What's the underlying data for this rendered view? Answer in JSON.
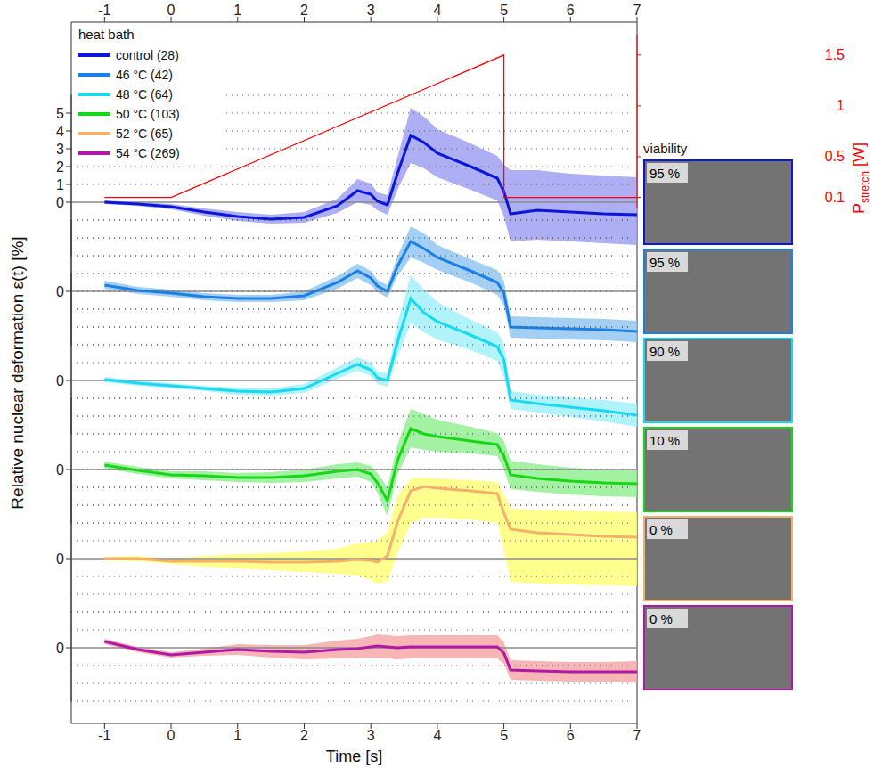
{
  "chart_data": {
    "type": "line",
    "xlabel": "Time [s]",
    "ylabel": "Relative nuclear deformation  ε(t) [%]",
    "xlim": [
      -1.5,
      7
    ],
    "xticks": [
      -1,
      0,
      1,
      2,
      3,
      4,
      5,
      6,
      7
    ],
    "grid": true,
    "legend": "top-left",
    "legend_title": "heat bath",
    "x": [
      -1,
      -0.5,
      0,
      0.5,
      1,
      1.5,
      2,
      2.5,
      2.8,
      3,
      3.1,
      3.25,
      3.4,
      3.6,
      3.8,
      4,
      4.5,
      4.9,
      5,
      5.1,
      5.5,
      6,
      6.5,
      7
    ],
    "series": [
      {
        "name": "control (28)",
        "color": "#0b16d8",
        "band_color": "#9a9af2",
        "ylim": [
          -3,
          6
        ],
        "yticks": [
          0,
          1,
          2,
          3,
          4,
          5
        ],
        "values": [
          0,
          -0.1,
          -0.25,
          -0.55,
          -0.8,
          -0.95,
          -0.85,
          -0.2,
          0.65,
          0.45,
          0.05,
          -0.15,
          1.6,
          3.75,
          3.35,
          2.75,
          2.0,
          1.35,
          0.6,
          -0.65,
          -0.45,
          -0.55,
          -0.65,
          -0.7
        ],
        "lower": [
          -0.1,
          -0.2,
          -0.4,
          -0.75,
          -1.05,
          -1.2,
          -1.15,
          -0.6,
          0.0,
          -0.15,
          -0.45,
          -0.7,
          0.7,
          2.2,
          1.9,
          1.4,
          0.7,
          0.1,
          -0.8,
          -2.2,
          -2.1,
          -2.2,
          -2.3,
          -2.4
        ],
        "upper": [
          0.1,
          0.0,
          -0.1,
          -0.35,
          -0.55,
          -0.7,
          -0.55,
          0.2,
          1.3,
          1.05,
          0.55,
          0.4,
          2.5,
          5.3,
          4.8,
          4.1,
          3.3,
          2.6,
          2.1,
          1.8,
          1.8,
          1.6,
          1.5,
          1.4
        ]
      },
      {
        "name": "46 °C (42)",
        "color": "#1a80e6",
        "band_color": "#8cc3f2",
        "ylim": [
          -3,
          4
        ],
        "yticks": [
          0
        ],
        "values": [
          0.35,
          0.05,
          -0.1,
          -0.3,
          -0.4,
          -0.4,
          -0.25,
          0.5,
          1.15,
          0.75,
          0.3,
          0.0,
          1.4,
          2.8,
          2.4,
          1.9,
          1.15,
          0.5,
          -0.1,
          -2.0,
          -2.05,
          -2.1,
          -2.15,
          -2.25
        ],
        "lower": [
          0.15,
          -0.15,
          -0.3,
          -0.5,
          -0.6,
          -0.6,
          -0.5,
          0.15,
          0.75,
          0.35,
          -0.05,
          -0.35,
          0.85,
          1.9,
          1.6,
          1.2,
          0.5,
          -0.2,
          -0.8,
          -2.6,
          -2.65,
          -2.7,
          -2.75,
          -2.85
        ],
        "upper": [
          0.6,
          0.25,
          0.1,
          -0.1,
          -0.2,
          -0.2,
          0.0,
          0.85,
          1.55,
          1.15,
          0.65,
          0.35,
          1.95,
          3.65,
          3.25,
          2.6,
          1.8,
          1.2,
          0.6,
          -1.4,
          -1.45,
          -1.5,
          -1.55,
          -1.65
        ]
      },
      {
        "name": "48 °C (64)",
        "color": "#18d8f2",
        "band_color": "#9cf0fa",
        "ylim": [
          -3,
          6
        ],
        "yticks": [
          0
        ],
        "values": [
          0.05,
          -0.15,
          -0.3,
          -0.45,
          -0.6,
          -0.65,
          -0.45,
          0.4,
          0.9,
          0.6,
          0.15,
          0.0,
          2.15,
          4.6,
          3.8,
          3.3,
          2.55,
          1.9,
          1.15,
          -1.1,
          -1.3,
          -1.5,
          -1.7,
          -1.95
        ],
        "lower": [
          -0.1,
          -0.3,
          -0.45,
          -0.6,
          -0.8,
          -0.85,
          -0.7,
          0.1,
          0.55,
          0.25,
          -0.2,
          -0.35,
          1.3,
          3.2,
          2.7,
          2.3,
          1.7,
          1.1,
          0.2,
          -1.6,
          -1.8,
          -2.05,
          -2.3,
          -2.6
        ],
        "upper": [
          0.2,
          0.0,
          -0.15,
          -0.3,
          -0.4,
          -0.45,
          -0.2,
          0.75,
          1.3,
          1.0,
          0.5,
          0.4,
          3.2,
          5.9,
          5.1,
          4.4,
          3.4,
          2.7,
          2.1,
          -0.6,
          -0.8,
          -0.95,
          -1.1,
          -1.3
        ]
      },
      {
        "name": "50 °C (103)",
        "color": "#16d816",
        "band_color": "#8cee8c",
        "ylim": [
          -3,
          4
        ],
        "yticks": [
          0
        ],
        "values": [
          0.25,
          -0.05,
          -0.3,
          -0.35,
          -0.45,
          -0.45,
          -0.35,
          -0.1,
          0.0,
          -0.25,
          -0.75,
          -1.75,
          0.5,
          2.3,
          2.0,
          1.85,
          1.6,
          1.4,
          0.75,
          -0.3,
          -0.5,
          -0.65,
          -0.75,
          -0.8
        ],
        "lower": [
          0.05,
          -0.25,
          -0.5,
          -0.6,
          -0.7,
          -0.75,
          -0.7,
          -0.5,
          -0.4,
          -0.7,
          -1.3,
          -2.6,
          -0.3,
          1.25,
          1.1,
          1.0,
          0.9,
          0.75,
          0.0,
          -1.1,
          -1.25,
          -1.4,
          -1.5,
          -1.55
        ],
        "upper": [
          0.45,
          0.15,
          -0.1,
          -0.1,
          -0.2,
          -0.15,
          0.0,
          0.3,
          0.4,
          0.2,
          -0.2,
          -1.0,
          1.4,
          3.4,
          3.1,
          2.8,
          2.4,
          2.05,
          1.6,
          0.5,
          0.3,
          0.1,
          0.0,
          -0.05
        ]
      },
      {
        "name": "52 °C (65)",
        "color": "#f5b06e",
        "band_color": "#ffff70",
        "ylim": [
          -3,
          5
        ],
        "yticks": [
          0
        ],
        "values": [
          0.0,
          0.0,
          -0.15,
          -0.15,
          -0.15,
          -0.2,
          -0.2,
          -0.15,
          -0.05,
          -0.1,
          -0.2,
          0.15,
          2.05,
          3.8,
          4.05,
          3.95,
          3.8,
          3.65,
          2.55,
          1.65,
          1.45,
          1.35,
          1.25,
          1.2
        ],
        "lower": [
          -0.1,
          -0.15,
          -0.3,
          -0.45,
          -0.55,
          -0.65,
          -0.75,
          -0.85,
          -0.95,
          -1.2,
          -1.4,
          -1.3,
          0.3,
          2.0,
          2.3,
          2.3,
          2.2,
          2.0,
          0.5,
          -1.3,
          -1.4,
          -1.45,
          -1.5,
          -1.55
        ],
        "upper": [
          0.1,
          0.15,
          0.0,
          0.15,
          0.25,
          0.3,
          0.4,
          0.55,
          0.85,
          0.95,
          1.0,
          1.5,
          3.5,
          4.5,
          4.55,
          4.5,
          4.4,
          4.3,
          3.6,
          2.8,
          2.75,
          2.7,
          2.65,
          2.6
        ]
      },
      {
        "name": "54 °C (269)",
        "color": "#b018a8",
        "band_color": "#f5a2a2",
        "ylim": [
          -3,
          2
        ],
        "yticks": [
          0
        ],
        "values": [
          0.35,
          -0.1,
          -0.4,
          -0.25,
          -0.1,
          -0.2,
          -0.25,
          -0.1,
          -0.05,
          0.05,
          0.1,
          0.05,
          0.0,
          0.05,
          0.05,
          0.05,
          0.05,
          0.05,
          -0.3,
          -1.25,
          -1.3,
          -1.35,
          -1.35,
          -1.35
        ],
        "lower": [
          0.2,
          -0.25,
          -0.55,
          -0.45,
          -0.4,
          -0.55,
          -0.65,
          -0.6,
          -0.6,
          -0.55,
          -0.55,
          -0.6,
          -0.65,
          -0.6,
          -0.6,
          -0.6,
          -0.6,
          -0.6,
          -0.9,
          -1.8,
          -1.85,
          -1.9,
          -1.9,
          -1.95
        ],
        "upper": [
          0.5,
          0.05,
          -0.25,
          -0.05,
          0.2,
          0.15,
          0.15,
          0.4,
          0.5,
          0.65,
          0.75,
          0.7,
          0.65,
          0.7,
          0.7,
          0.7,
          0.7,
          0.7,
          0.3,
          -0.7,
          -0.75,
          -0.8,
          -0.8,
          -0.75
        ]
      },
      {
        "axis": "y2",
        "color": "#ff0000",
        "x": [
          -1,
          0,
          5,
          5,
          7
        ],
        "values": [
          0.1,
          0.1,
          1.5,
          0.1,
          0.1
        ]
      }
    ],
    "y2lim": [
      0,
      1.7
    ],
    "y2ticks": [
      0.1,
      0.5,
      1,
      1.5
    ],
    "y2label": "Pstretch [W]",
    "y2label_subscript": "stretch",
    "viability": {
      "title": "viability",
      "values": [
        95,
        95,
        90,
        10,
        0,
        0
      ],
      "value_labels": [
        "95 %",
        "95 %",
        "90 %",
        "10 %",
        "0 %",
        "0 %"
      ]
    }
  }
}
